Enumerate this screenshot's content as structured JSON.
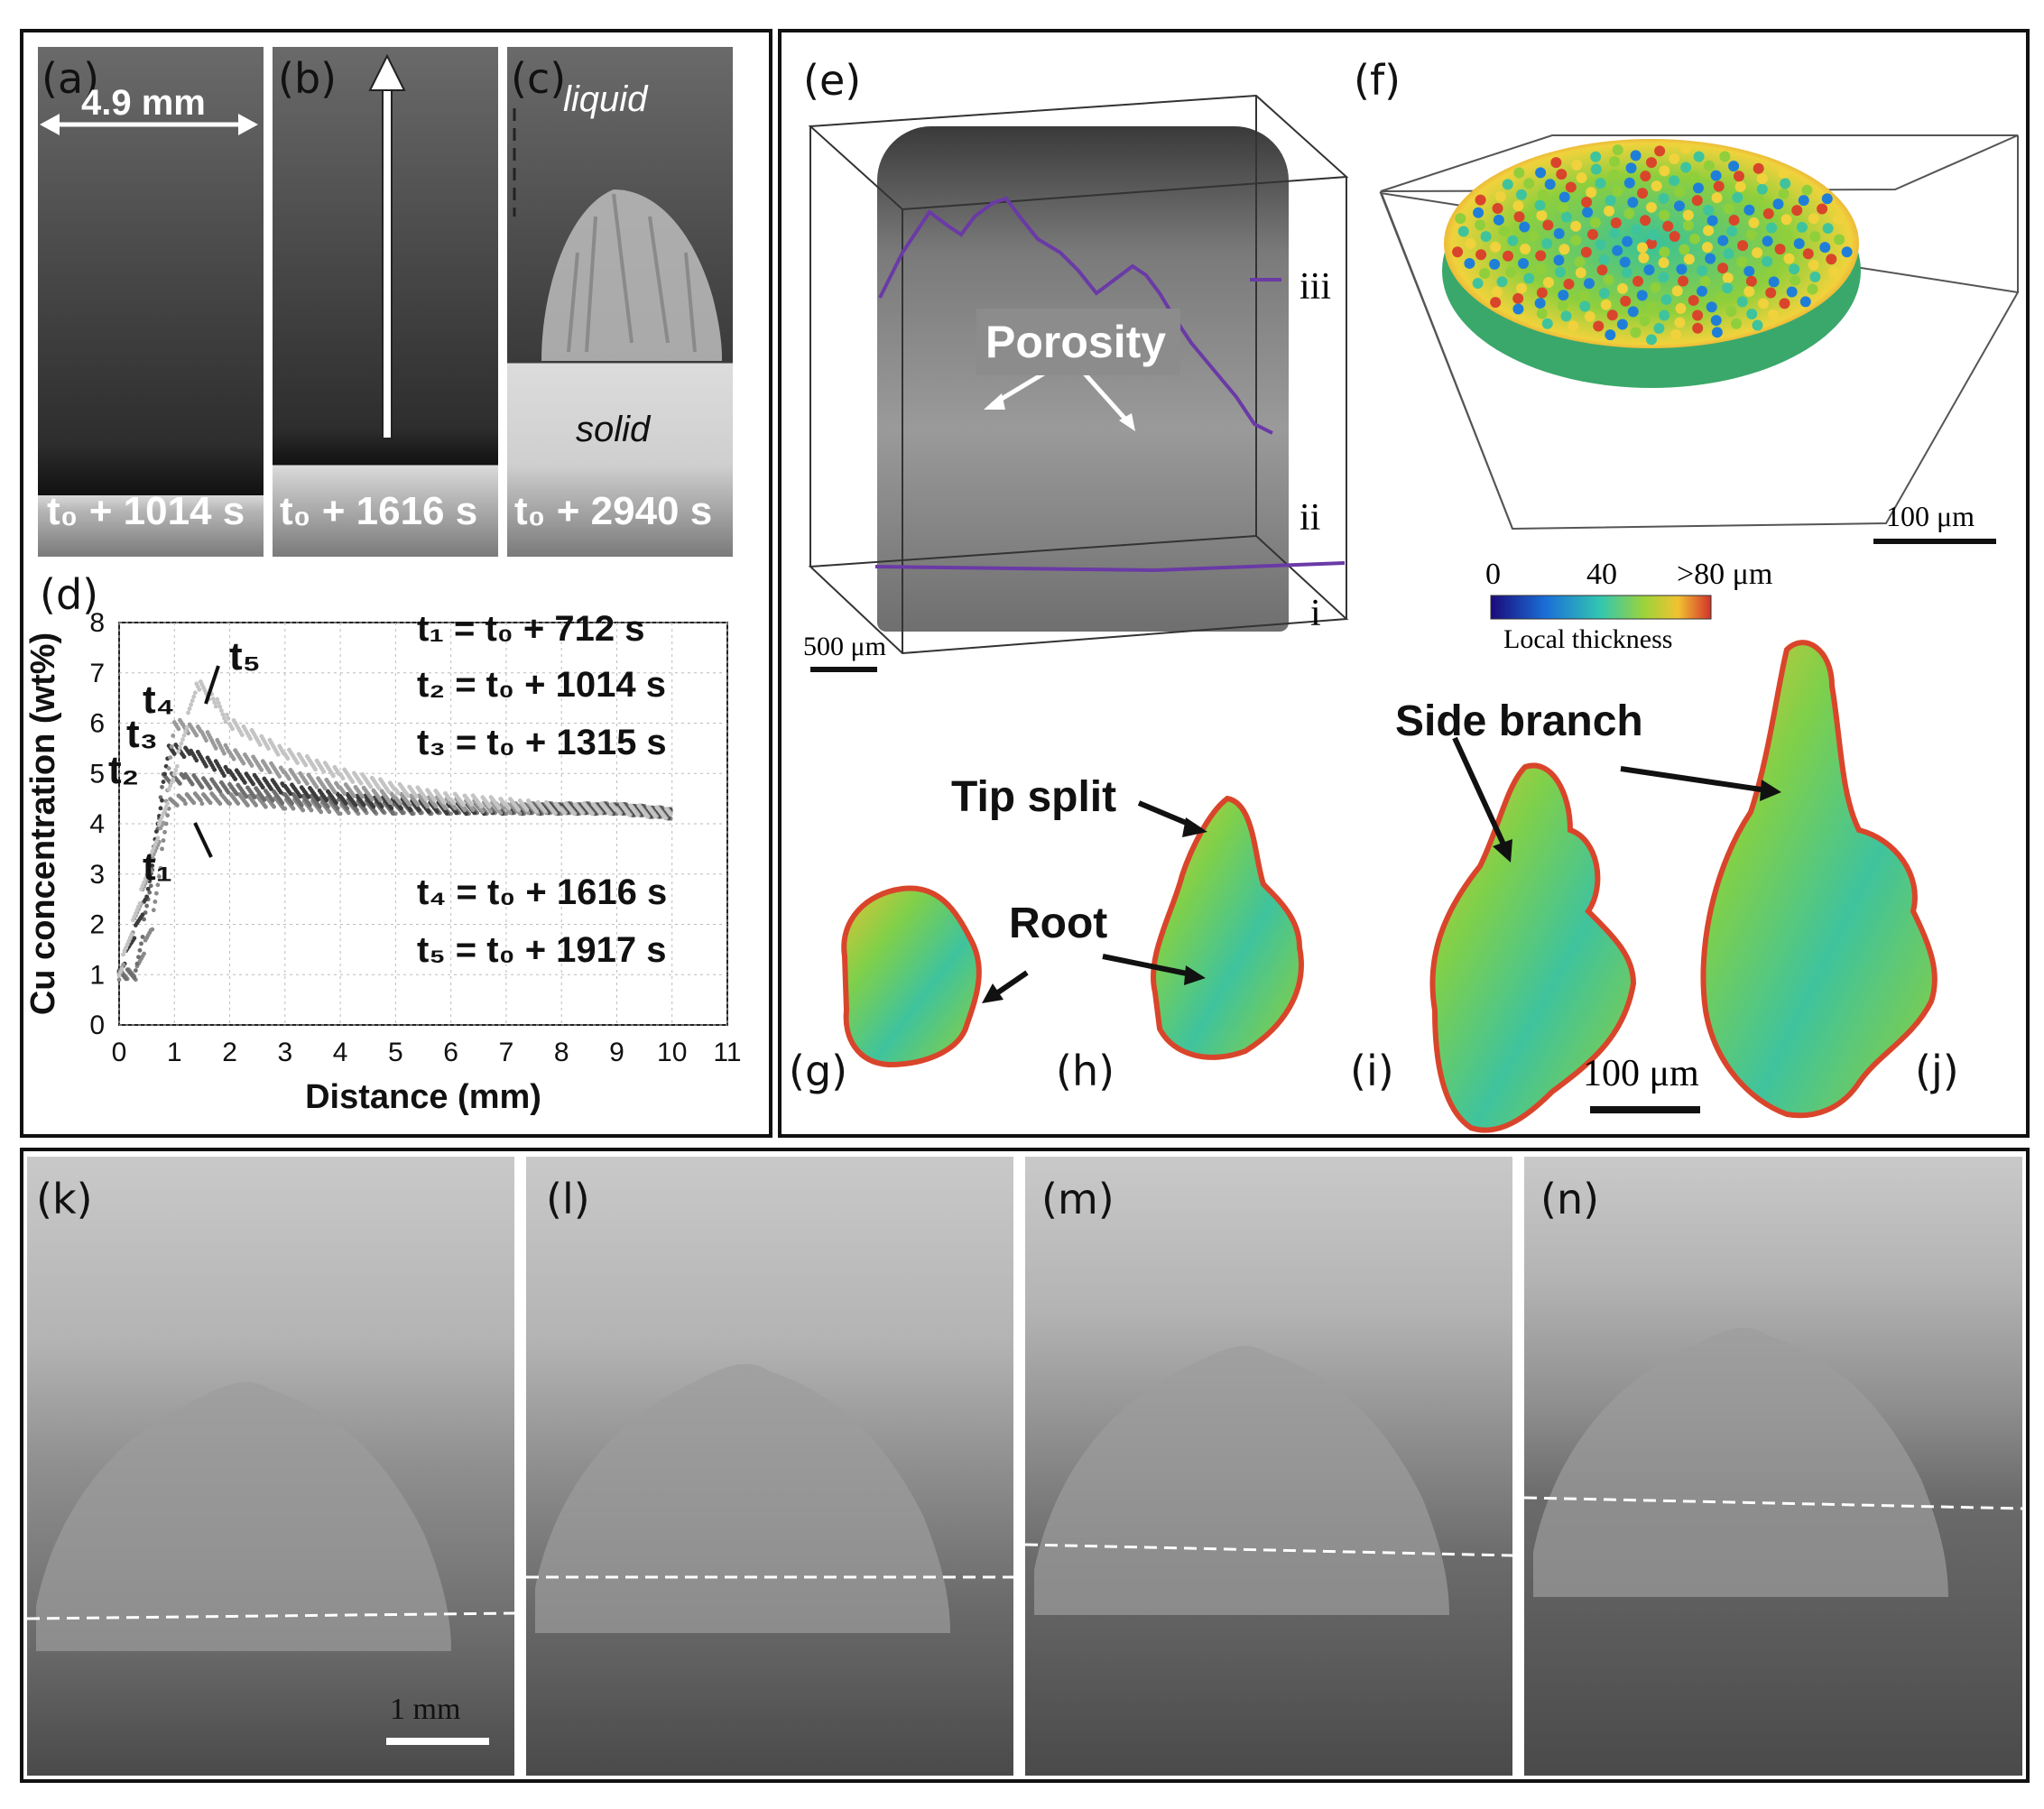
{
  "panels": {
    "a": {
      "label": "(a)",
      "time": "t₀ + 1014 s",
      "width": "4.9 mm"
    },
    "b": {
      "label": "(b)",
      "time": "t₀ + 1616 s"
    },
    "c": {
      "label": "(c)",
      "time": "t₀ + 2940 s",
      "liquid": "liquid",
      "solid": "solid"
    },
    "d": {
      "label": "(d)"
    },
    "e": {
      "label": "(e)",
      "porosity": "Porosity",
      "marker_iii": "iii",
      "marker_ii": "ii",
      "marker_i": "i",
      "scale": "500 μm"
    },
    "f": {
      "label": "(f)",
      "scale": "100 μm",
      "cbar_min": "0",
      "cbar_mid": "40",
      "cbar_max": ">80 μm",
      "cbar_title": "Local thickness"
    },
    "g": {
      "label": "(g)"
    },
    "h": {
      "label": "(h)",
      "tip_split": "Tip split",
      "root": "Root"
    },
    "i": {
      "label": "(i)",
      "side_branch": "Side branch"
    },
    "j": {
      "label": "(j)",
      "scale": "100 μm"
    },
    "k": {
      "label": "(k)",
      "scale": "1 mm"
    },
    "l": {
      "label": "(l)"
    },
    "m": {
      "label": "(m)"
    },
    "n": {
      "label": "(n)"
    }
  },
  "chart_data": {
    "type": "scatter",
    "xlabel": "Distance (mm)",
    "ylabel": "Cu concentration (wt%)",
    "xlim": [
      0,
      11
    ],
    "ylim": [
      0,
      8
    ],
    "xticks": [
      "0",
      "1",
      "2",
      "3",
      "4",
      "5",
      "6",
      "7",
      "8",
      "9",
      "10",
      "11"
    ],
    "yticks": [
      "0",
      "1",
      "2",
      "3",
      "4",
      "5",
      "6",
      "7",
      "8"
    ],
    "grid": true,
    "legend_text": [
      "t₁ = t₀ + 712 s",
      "t₂ = t₀ + 1014 s",
      "t₃ = t₀ + 1315 s",
      "t₄ = t₀ + 1616 s",
      "t₅ = t₀ + 1917 s"
    ],
    "series": [
      {
        "name": "t₁",
        "color": "#8a8a8a",
        "x": [
          0.0,
          0.3,
          0.6,
          0.9,
          1.2,
          1.5,
          2,
          3,
          4,
          5,
          6,
          7,
          8,
          9,
          10
        ],
        "y": [
          1.0,
          1.0,
          2.0,
          4.4,
          4.5,
          4.5,
          4.5,
          4.4,
          4.3,
          4.3,
          4.3,
          4.3,
          4.3,
          4.3,
          4.2
        ]
      },
      {
        "name": "t₂",
        "color": "#6e6e6e",
        "x": [
          0.0,
          0.3,
          0.6,
          0.8,
          1.2,
          2,
          3,
          4,
          5,
          6,
          7,
          8,
          9,
          10
        ],
        "y": [
          1.0,
          1.0,
          3.0,
          4.9,
          4.9,
          4.7,
          4.5,
          4.4,
          4.3,
          4.3,
          4.3,
          4.3,
          4.3,
          4.2
        ]
      },
      {
        "name": "t₃",
        "color": "#3c3c3c",
        "x": [
          0.0,
          0.5,
          0.9,
          1.3,
          2,
          3,
          4,
          5,
          6,
          7,
          8,
          9,
          10
        ],
        "y": [
          1.0,
          2.5,
          5.5,
          5.4,
          5.0,
          4.7,
          4.5,
          4.4,
          4.3,
          4.3,
          4.3,
          4.3,
          4.2
        ]
      },
      {
        "name": "t₄",
        "color": "#9a9a9a",
        "x": [
          0.0,
          0.8,
          1.0,
          1.5,
          2,
          3,
          4,
          5,
          6,
          7,
          8,
          9,
          10
        ],
        "y": [
          1.0,
          4.0,
          6.0,
          5.8,
          5.4,
          5.0,
          4.7,
          4.5,
          4.4,
          4.3,
          4.3,
          4.3,
          4.2
        ]
      },
      {
        "name": "t₅",
        "color": "#c4c4c4",
        "x": [
          0.0,
          1.0,
          1.4,
          1.7,
          2,
          3,
          4,
          5,
          6,
          7,
          8,
          9,
          10
        ],
        "y": [
          1.0,
          5.0,
          6.8,
          6.5,
          6.0,
          5.4,
          5.0,
          4.7,
          4.5,
          4.4,
          4.3,
          4.3,
          4.2
        ]
      }
    ],
    "series_labels": [
      "t₁",
      "t₂",
      "t₃",
      "t₄",
      "t₅"
    ]
  }
}
